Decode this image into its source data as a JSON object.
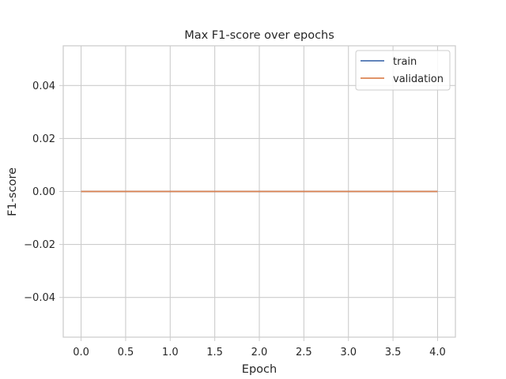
{
  "chart_data": {
    "type": "line",
    "title": "Max F1-score over epochs",
    "xlabel": "Epoch",
    "ylabel": "F1-score",
    "xlim": [
      -0.2,
      4.2
    ],
    "ylim": [
      -0.055,
      0.055
    ],
    "x_ticks": [
      0.0,
      0.5,
      1.0,
      1.5,
      2.0,
      2.5,
      3.0,
      3.5,
      4.0
    ],
    "x_tick_labels": [
      "0.0",
      "0.5",
      "1.0",
      "1.5",
      "2.0",
      "2.5",
      "3.0",
      "3.5",
      "4.0"
    ],
    "y_ticks": [
      -0.04,
      -0.02,
      0.0,
      0.02,
      0.04
    ],
    "y_tick_labels": [
      "−0.04",
      "−0.02",
      "0.00",
      "0.02",
      "0.04"
    ],
    "grid": true,
    "legend_position": "top-right",
    "x": [
      0,
      1,
      2,
      3,
      4
    ],
    "series": [
      {
        "name": "train",
        "color": "#4c72b0",
        "values": [
          0,
          0,
          0,
          0,
          0
        ]
      },
      {
        "name": "validation",
        "color": "#dd8452",
        "values": [
          0,
          0,
          0,
          0,
          0
        ]
      }
    ]
  }
}
